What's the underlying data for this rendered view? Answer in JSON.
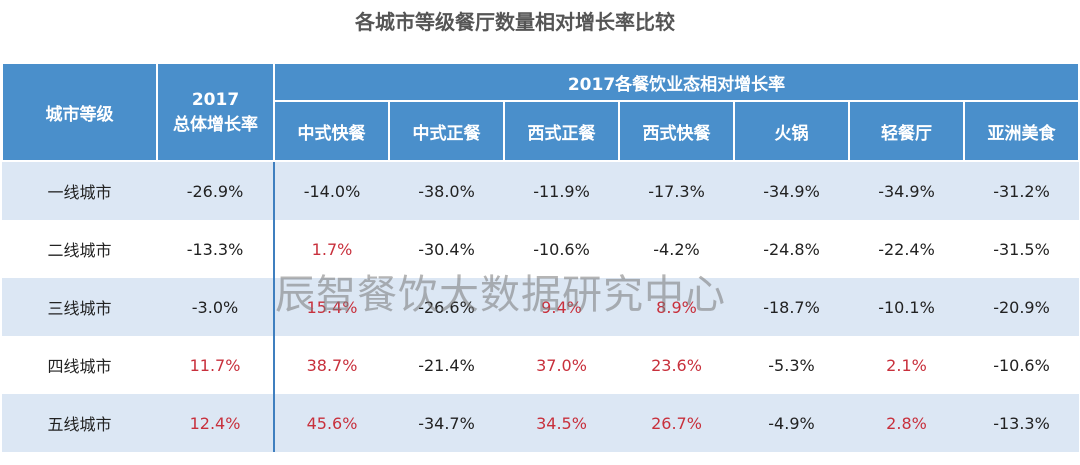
{
  "title": "各城市等级餐厅数量相对增长率比较",
  "header": {
    "city": "城市等级",
    "overall": [
      "2017",
      "总体增长率"
    ],
    "group": "2017各餐饮业态相对增长率",
    "columns": [
      "中式快餐",
      "中式正餐",
      "西式正餐",
      "西式快餐",
      "火锅",
      "轻餐厅",
      "亚洲美食"
    ]
  },
  "rows": [
    [
      "一线城市",
      "-26.9%",
      "-14.0%",
      "-38.0%",
      "-11.9%",
      "-17.3%",
      "-34.9%",
      "-34.9%",
      "-31.2%"
    ],
    [
      "二线城市",
      "-13.3%",
      "1.7%",
      "-30.4%",
      "-10.6%",
      "-4.2%",
      "-24.8%",
      "-22.4%",
      "-31.5%"
    ],
    [
      "三线城市",
      "-3.0%",
      "15.4%",
      "-26.6%",
      "9.4%",
      "8.9%",
      "-18.7%",
      "-10.1%",
      "-20.9%"
    ],
    [
      "四线城市",
      "11.7%",
      "38.7%",
      "-21.4%",
      "37.0%",
      "23.6%",
      "-5.3%",
      "2.1%",
      "-10.6%"
    ],
    [
      "五线城市",
      "12.4%",
      "45.6%",
      "-34.7%",
      "34.5%",
      "26.7%",
      "-4.9%",
      "2.8%",
      "-13.3%"
    ]
  ],
  "watermark": "辰智餐饮大数据研究中心"
}
